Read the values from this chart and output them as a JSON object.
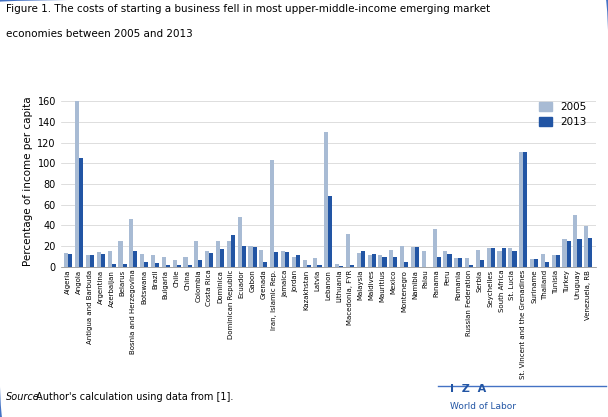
{
  "title_line1": "Figure 1. The costs of starting a business fell in most upper-middle-income emerging market",
  "title_line2": "economies between 2005 and 2013",
  "ylabel": "Percentage of income per capita",
  "source_italic": "Source:",
  "source_rest": " Author's calculation using data from [1].",
  "color_2005": "#a8bbd4",
  "color_2013": "#2255a4",
  "countries": [
    "Algeria",
    "Angola",
    "Antigua and Barbuda",
    "Argentina",
    "Azerbaijan",
    "Belarus",
    "Bosnia and Herzegovina",
    "Botswana",
    "Brazil",
    "Bulgaria",
    "Chile",
    "China",
    "Colombia",
    "Costa Rica",
    "Dominica",
    "Dominican Republic",
    "Ecuador",
    "Gabon",
    "Grenada",
    "Iran, Islamic Rep.",
    "Jamaica",
    "Jordan",
    "Kazakhstan",
    "Latvia",
    "Lebanon",
    "Lithuania",
    "Macedonia, FYR",
    "Malaysia",
    "Maldives",
    "Mauritius",
    "Mexico",
    "Montenegro",
    "Namibia",
    "Palau",
    "Panama",
    "Peru",
    "Romania",
    "Russian Federation",
    "Serbia",
    "Seychelles",
    "South Africa",
    "St. Lucia",
    "St. Vincent and the Grenadines",
    "Suriname",
    "Thailand",
    "Tunisia",
    "Turkey",
    "Uruguay",
    "Venezuela, RB"
  ],
  "values_2005": [
    13,
    160,
    11,
    14,
    15,
    25,
    46,
    12,
    11,
    10,
    7,
    10,
    25,
    15,
    25,
    25,
    48,
    20,
    16,
    103,
    15,
    10,
    7,
    9,
    130,
    3,
    32,
    13,
    11,
    11,
    16,
    20,
    19,
    15,
    37,
    15,
    9,
    9,
    16,
    18,
    15,
    18,
    111,
    8,
    12,
    11,
    27,
    50,
    39
  ],
  "values_2013": [
    12,
    105,
    11,
    12,
    3,
    3,
    15,
    5,
    4,
    2,
    2,
    2,
    7,
    13,
    17,
    31,
    20,
    19,
    5,
    14,
    14,
    11,
    2,
    2,
    68,
    1,
    2,
    15,
    12,
    10,
    10,
    5,
    19,
    0,
    10,
    12,
    9,
    2,
    7,
    18,
    18,
    15,
    111,
    8,
    5,
    11,
    25,
    27,
    28
  ],
  "ylim": [
    0,
    165
  ],
  "yticks": [
    0,
    20,
    40,
    60,
    80,
    100,
    120,
    140,
    160
  ],
  "background_color": "#ffffff",
  "plot_background": "#ffffff",
  "border_color": "#4472c4",
  "iza_color": "#2255a4",
  "figsize": [
    6.08,
    4.17
  ],
  "dpi": 100
}
